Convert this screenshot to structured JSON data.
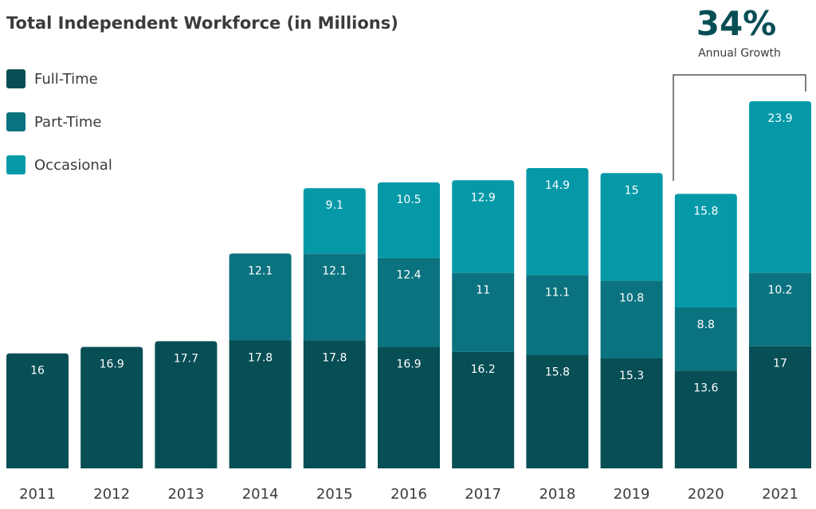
{
  "colors": {
    "full_time": "#074e55",
    "part_time": "#0b737f",
    "occasional": "#0599a8",
    "callout": "#074e55",
    "bracket": "#555555"
  },
  "callout": {
    "value": "34%",
    "label": "Annual Growth"
  },
  "chart_data": {
    "type": "bar",
    "stacked": true,
    "title": "Total Independent Workforce (in Millions)",
    "xlabel": "",
    "ylabel": "",
    "ylim": [
      0,
      60
    ],
    "grid": false,
    "legend_position": "top-left",
    "categories": [
      "2011",
      "2012",
      "2013",
      "2014",
      "2015",
      "2016",
      "2017",
      "2018",
      "2019",
      "2020",
      "2021"
    ],
    "series": [
      {
        "name": "Full-Time",
        "values": [
          16,
          16.9,
          17.7,
          17.8,
          17.8,
          16.9,
          16.2,
          15.8,
          15.3,
          13.6,
          17
        ]
      },
      {
        "name": "Part-Time",
        "values": [
          null,
          null,
          null,
          12.1,
          12.1,
          12.4,
          11,
          11.1,
          10.8,
          8.8,
          10.2
        ]
      },
      {
        "name": "Occasional",
        "values": [
          null,
          null,
          null,
          null,
          9.1,
          10.5,
          12.9,
          14.9,
          15,
          15.8,
          23.9
        ]
      }
    ]
  }
}
